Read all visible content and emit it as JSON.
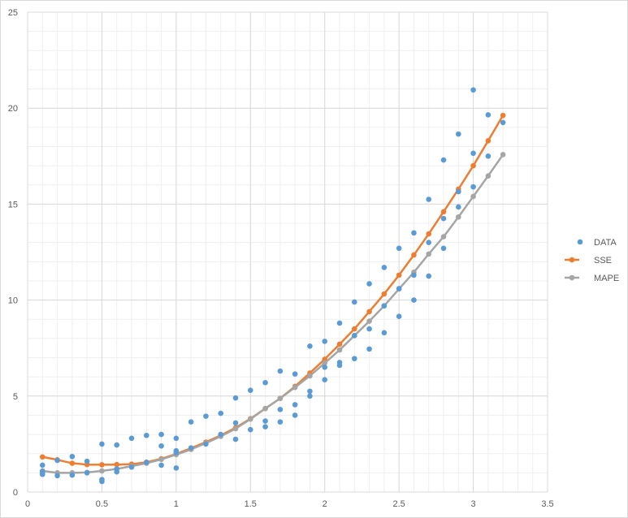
{
  "chart_data": {
    "type": "scatter",
    "title": "",
    "xlabel": "",
    "ylabel": "",
    "xlim": [
      0,
      3.5
    ],
    "ylim": [
      0,
      25
    ],
    "x_major_ticks": [
      "0",
      "0.5",
      "1",
      "1.5",
      "2",
      "2.5",
      "3",
      "3.5"
    ],
    "y_major_ticks": [
      "0",
      "5",
      "10",
      "15",
      "20",
      "25"
    ],
    "x_minor_step": 0.1,
    "y_minor_step": 1,
    "grid": true,
    "legend_position": "right",
    "series": [
      {
        "name": "DATA",
        "type": "scatter",
        "color": "#5b9bd5",
        "points": [
          [
            0.1,
            0.92
          ],
          [
            0.1,
            1.08
          ],
          [
            0.1,
            1.4
          ],
          [
            0.1,
            1.0
          ],
          [
            0.2,
            0.85
          ],
          [
            0.2,
            1.65
          ],
          [
            0.3,
            0.88
          ],
          [
            0.3,
            1.85
          ],
          [
            0.4,
            1.0
          ],
          [
            0.4,
            1.6
          ],
          [
            0.5,
            0.55
          ],
          [
            0.5,
            0.65
          ],
          [
            0.5,
            2.5
          ],
          [
            0.6,
            1.05
          ],
          [
            0.6,
            1.2
          ],
          [
            0.6,
            2.45
          ],
          [
            0.7,
            1.3
          ],
          [
            0.7,
            2.8
          ],
          [
            0.8,
            1.55
          ],
          [
            0.8,
            2.95
          ],
          [
            0.9,
            1.4
          ],
          [
            0.9,
            2.4
          ],
          [
            0.9,
            3.0
          ],
          [
            1.0,
            1.25
          ],
          [
            1.0,
            2.05
          ],
          [
            1.0,
            2.15
          ],
          [
            1.0,
            2.8
          ],
          [
            1.1,
            2.3
          ],
          [
            1.1,
            3.65
          ],
          [
            1.2,
            2.5
          ],
          [
            1.2,
            3.95
          ],
          [
            1.3,
            3.0
          ],
          [
            1.3,
            4.1
          ],
          [
            1.4,
            2.75
          ],
          [
            1.4,
            3.6
          ],
          [
            1.4,
            4.9
          ],
          [
            1.5,
            3.25
          ],
          [
            1.5,
            5.3
          ],
          [
            1.6,
            3.4
          ],
          [
            1.6,
            3.7
          ],
          [
            1.6,
            5.7
          ],
          [
            1.7,
            3.65
          ],
          [
            1.7,
            4.3
          ],
          [
            1.7,
            6.3
          ],
          [
            1.8,
            4.0
          ],
          [
            1.8,
            4.55
          ],
          [
            1.8,
            6.15
          ],
          [
            1.9,
            5.0
          ],
          [
            1.9,
            5.25
          ],
          [
            1.9,
            7.6
          ],
          [
            2.0,
            5.85
          ],
          [
            2.0,
            6.5
          ],
          [
            2.0,
            7.85
          ],
          [
            2.1,
            6.6
          ],
          [
            2.1,
            6.75
          ],
          [
            2.1,
            8.8
          ],
          [
            2.2,
            6.95
          ],
          [
            2.2,
            8.15
          ],
          [
            2.2,
            9.9
          ],
          [
            2.3,
            7.45
          ],
          [
            2.3,
            8.5
          ],
          [
            2.3,
            10.85
          ],
          [
            2.4,
            8.3
          ],
          [
            2.4,
            9.7
          ],
          [
            2.4,
            11.7
          ],
          [
            2.5,
            9.15
          ],
          [
            2.5,
            10.6
          ],
          [
            2.5,
            12.7
          ],
          [
            2.6,
            10.0
          ],
          [
            2.6,
            11.3
          ],
          [
            2.6,
            13.5
          ],
          [
            2.7,
            11.25
          ],
          [
            2.7,
            13.0
          ],
          [
            2.7,
            15.25
          ],
          [
            2.8,
            12.7
          ],
          [
            2.8,
            14.25
          ],
          [
            2.8,
            17.3
          ],
          [
            2.9,
            14.85
          ],
          [
            2.9,
            15.65
          ],
          [
            2.9,
            18.65
          ],
          [
            3.0,
            15.9
          ],
          [
            3.0,
            17.65
          ],
          [
            3.0,
            20.95
          ],
          [
            3.1,
            17.5
          ],
          [
            3.1,
            19.65
          ],
          [
            3.2,
            19.25
          ]
        ]
      },
      {
        "name": "SSE",
        "type": "line",
        "color": "#ed7d31",
        "points": [
          [
            0.1,
            1.83
          ],
          [
            0.2,
            1.68
          ],
          [
            0.3,
            1.5
          ],
          [
            0.4,
            1.43
          ],
          [
            0.5,
            1.42
          ],
          [
            0.6,
            1.43
          ],
          [
            0.7,
            1.45
          ],
          [
            0.8,
            1.55
          ],
          [
            0.9,
            1.73
          ],
          [
            1.0,
            1.98
          ],
          [
            1.1,
            2.28
          ],
          [
            1.2,
            2.6
          ],
          [
            1.3,
            2.95
          ],
          [
            1.4,
            3.35
          ],
          [
            1.5,
            3.82
          ],
          [
            1.6,
            4.35
          ],
          [
            1.7,
            4.88
          ],
          [
            1.8,
            5.5
          ],
          [
            1.9,
            6.2
          ],
          [
            2.0,
            6.92
          ],
          [
            2.1,
            7.7
          ],
          [
            2.2,
            8.5
          ],
          [
            2.3,
            9.4
          ],
          [
            2.4,
            10.32
          ],
          [
            2.5,
            11.3
          ],
          [
            2.6,
            12.35
          ],
          [
            2.7,
            13.45
          ],
          [
            2.8,
            14.6
          ],
          [
            2.9,
            15.78
          ],
          [
            3.0,
            17.0
          ],
          [
            3.1,
            18.3
          ],
          [
            3.2,
            19.62
          ]
        ]
      },
      {
        "name": "MAPE",
        "type": "line",
        "color": "#a5a5a5",
        "points": [
          [
            0.1,
            1.1
          ],
          [
            0.2,
            1.0
          ],
          [
            0.3,
            1.0
          ],
          [
            0.4,
            1.02
          ],
          [
            0.5,
            1.1
          ],
          [
            0.6,
            1.2
          ],
          [
            0.7,
            1.35
          ],
          [
            0.8,
            1.5
          ],
          [
            0.9,
            1.7
          ],
          [
            1.0,
            1.95
          ],
          [
            1.1,
            2.22
          ],
          [
            1.2,
            2.55
          ],
          [
            1.3,
            2.9
          ],
          [
            1.4,
            3.3
          ],
          [
            1.5,
            3.8
          ],
          [
            1.6,
            4.35
          ],
          [
            1.7,
            4.88
          ],
          [
            1.8,
            5.45
          ],
          [
            1.9,
            6.05
          ],
          [
            2.0,
            6.72
          ],
          [
            2.1,
            7.4
          ],
          [
            2.2,
            8.15
          ],
          [
            2.3,
            8.9
          ],
          [
            2.4,
            9.7
          ],
          [
            2.5,
            10.58
          ],
          [
            2.6,
            11.45
          ],
          [
            2.7,
            12.4
          ],
          [
            2.8,
            13.3
          ],
          [
            2.9,
            14.33
          ],
          [
            3.0,
            15.4
          ],
          [
            3.1,
            16.47
          ],
          [
            3.2,
            17.58
          ]
        ]
      }
    ]
  }
}
